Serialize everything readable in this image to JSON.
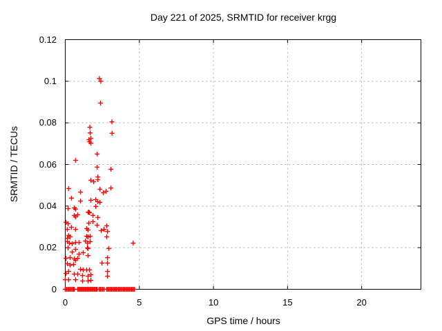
{
  "chart_data": {
    "type": "scatter",
    "title": "Day 221 of 2025, SRMTID for receiver krgg",
    "xlabel": "GPS time / hours",
    "ylabel": "SRMTID / TECUs",
    "xlim": [
      0,
      24
    ],
    "ylim": [
      0,
      0.12
    ],
    "xticks": [
      0,
      5,
      10,
      15,
      20
    ],
    "xtick_labels": [
      "0",
      "5",
      "10",
      "15",
      "20"
    ],
    "yticks": [
      0,
      0.02,
      0.04,
      0.06,
      0.08,
      0.1,
      0.12
    ],
    "ytick_labels": [
      "0",
      "0.02",
      "0.04",
      "0.06",
      "0.08",
      "0.1",
      "0.12"
    ],
    "grid": true,
    "legend": "none",
    "marker": {
      "shape": "plus",
      "size": 7,
      "color": "#ff0000"
    },
    "grid_color": "#a8a8a8",
    "border_color": "#000000",
    "series_name": "SRMTID",
    "points": [
      [
        2.3,
        0.1013
      ],
      [
        2.4,
        0.1
      ],
      [
        2.38,
        0.0895
      ],
      [
        3.15,
        0.0805
      ],
      [
        1.66,
        0.0779
      ],
      [
        1.68,
        0.0752
      ],
      [
        3.16,
        0.075
      ],
      [
        1.73,
        0.0726
      ],
      [
        1.6,
        0.0719
      ],
      [
        1.64,
        0.0709
      ],
      [
        1.73,
        0.0702
      ],
      [
        2.15,
        0.065
      ],
      [
        0.7,
        0.062
      ],
      [
        2.15,
        0.0587
      ],
      [
        3.08,
        0.0577
      ],
      [
        2.2,
        0.054
      ],
      [
        2.2,
        0.0527
      ],
      [
        1.73,
        0.0524
      ],
      [
        1.92,
        0.0517
      ],
      [
        3.08,
        0.0487
      ],
      [
        0.23,
        0.0484
      ],
      [
        2.34,
        0.0481
      ],
      [
        2.76,
        0.0471
      ],
      [
        1.03,
        0.0467
      ],
      [
        2.57,
        0.0464
      ],
      [
        0.42,
        0.0438
      ],
      [
        2.06,
        0.0431
      ],
      [
        1.73,
        0.0428
      ],
      [
        1.03,
        0.0424
      ],
      [
        2.2,
        0.0421
      ],
      [
        2.34,
        0.0418
      ],
      [
        2.06,
        0.0398
      ],
      [
        0.61,
        0.0391
      ],
      [
        0.19,
        0.0388
      ],
      [
        0.7,
        0.0385
      ],
      [
        1.59,
        0.0371
      ],
      [
        1.55,
        0.037
      ],
      [
        1.64,
        0.0368
      ],
      [
        0.84,
        0.0358
      ],
      [
        1.87,
        0.0355
      ],
      [
        0.61,
        0.0355
      ],
      [
        0.7,
        0.0348
      ],
      [
        2.2,
        0.0345
      ],
      [
        1.87,
        0.0325
      ],
      [
        0.05,
        0.0322
      ],
      [
        1.59,
        0.0318
      ],
      [
        0.19,
        0.0315
      ],
      [
        2.15,
        0.0308
      ],
      [
        2.8,
        0.0305
      ],
      [
        0.42,
        0.0298
      ],
      [
        1.45,
        0.0292
      ],
      [
        0.7,
        0.0288
      ],
      [
        0.14,
        0.0288
      ],
      [
        2.62,
        0.0288
      ],
      [
        1.54,
        0.0285
      ],
      [
        2.43,
        0.0282
      ],
      [
        2.85,
        0.0278
      ],
      [
        0.23,
        0.0259
      ],
      [
        1.45,
        0.0255
      ],
      [
        1.68,
        0.0255
      ],
      [
        0.33,
        0.0252
      ],
      [
        1.54,
        0.0252
      ],
      [
        2.8,
        0.0252
      ],
      [
        0.14,
        0.0245
      ],
      [
        1.36,
        0.0232
      ],
      [
        0.14,
        0.0229
      ],
      [
        1.68,
        0.0229
      ],
      [
        0.7,
        0.0225
      ],
      [
        0.93,
        0.0225
      ],
      [
        0.28,
        0.0222
      ],
      [
        1.5,
        0.0222
      ],
      [
        4.58,
        0.0222
      ],
      [
        0.47,
        0.0219
      ],
      [
        1.5,
        0.0199
      ],
      [
        0.19,
        0.0199
      ],
      [
        1.54,
        0.0196
      ],
      [
        2.94,
        0.0196
      ],
      [
        0.7,
        0.0192
      ],
      [
        0.47,
        0.0179
      ],
      [
        1.21,
        0.0176
      ],
      [
        0.93,
        0.0169
      ],
      [
        1.54,
        0.0162
      ],
      [
        0.33,
        0.0152
      ],
      [
        2.85,
        0.0152
      ],
      [
        0.05,
        0.0149
      ],
      [
        0.84,
        0.0149
      ],
      [
        0.61,
        0.0146
      ],
      [
        0.7,
        0.0139
      ],
      [
        2.48,
        0.0126
      ],
      [
        2.85,
        0.0126
      ],
      [
        0.14,
        0.0123
      ],
      [
        0.56,
        0.0119
      ],
      [
        0.33,
        0.0116
      ],
      [
        1.03,
        0.0096
      ],
      [
        1.21,
        0.0093
      ],
      [
        1.45,
        0.0093
      ],
      [
        1.64,
        0.0093
      ],
      [
        0.23,
        0.0086
      ],
      [
        2.85,
        0.0086
      ],
      [
        0.05,
        0.0076
      ],
      [
        0.61,
        0.0073
      ],
      [
        0.84,
        0.0073
      ],
      [
        1.73,
        0.007
      ],
      [
        1.17,
        0.0066
      ],
      [
        1.54,
        0.0063
      ],
      [
        2.85,
        0.0063
      ],
      [
        0.0,
        0.0046
      ],
      [
        0.23,
        0.0046
      ],
      [
        0.7,
        0.0046
      ],
      [
        1.73,
        0.0043
      ],
      [
        1.17,
        0.004
      ],
      [
        1.54,
        0.004
      ]
    ],
    "baseline_y": 0,
    "baseline_x": [
      0.0,
      0.08,
      0.16,
      0.24,
      0.32,
      0.4,
      0.48,
      0.56,
      0.61,
      0.84,
      0.91,
      0.98,
      1.05,
      1.12,
      1.19,
      1.26,
      1.33,
      1.4,
      1.47,
      1.54,
      1.61,
      1.68,
      1.75,
      1.82,
      1.89,
      1.96,
      2.03,
      2.1,
      2.15,
      2.29,
      2.37,
      2.45,
      2.53,
      2.62,
      2.8,
      2.88,
      2.96,
      3.04,
      3.12,
      3.2,
      3.28,
      3.36,
      3.44,
      3.52,
      3.6,
      3.68,
      3.76,
      3.84,
      3.92,
      4.0,
      4.08,
      4.16,
      4.24,
      4.32,
      4.4,
      4.48,
      4.56,
      4.64,
      4.67
    ]
  }
}
